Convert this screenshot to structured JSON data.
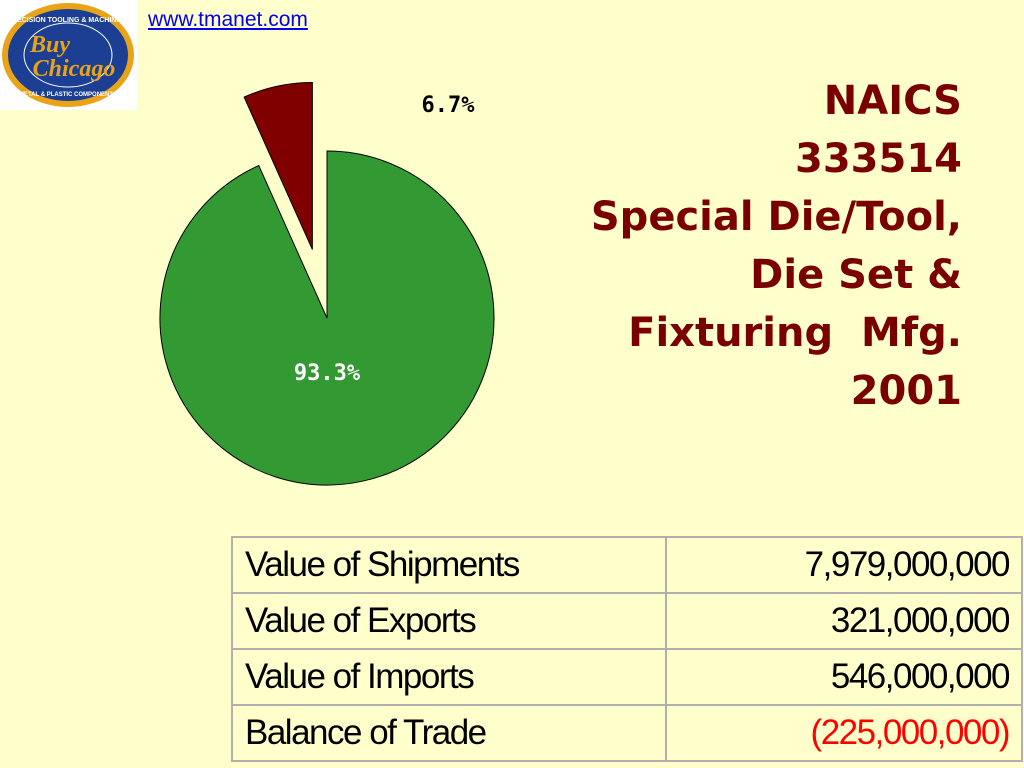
{
  "header": {
    "link_text": "www.tmanet.com",
    "logo": {
      "top_text": "PRECISION TOOLING & MACHINING",
      "main_line1": "Buy",
      "main_line2": "Chicago",
      "bottom_text": "METAL & PLASTIC COMPONENTS"
    }
  },
  "title": {
    "lines": [
      "NAICS",
      "333514",
      "Special Die/Tool,",
      "Die Set &",
      "Fixturing  Mfg.",
      "2001"
    ]
  },
  "chart_data": {
    "type": "pie",
    "slices": [
      {
        "label": "6.7%",
        "value": 6.7,
        "color": "#800000",
        "exploded": true
      },
      {
        "label": "93.3%",
        "value": 93.3,
        "color": "#339933",
        "exploded": false
      }
    ]
  },
  "table": {
    "rows": [
      {
        "label": "Value of Shipments",
        "value": "7,979,000,000",
        "negative": false
      },
      {
        "label": "Value of Exports",
        "value": "321,000,000",
        "negative": false
      },
      {
        "label": "Value of Imports",
        "value": "546,000,000",
        "negative": false
      },
      {
        "label": "Balance of Trade",
        "value": "(225,000,000)",
        "negative": true
      }
    ]
  }
}
